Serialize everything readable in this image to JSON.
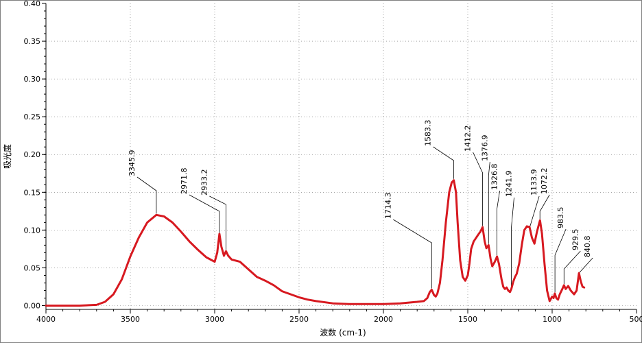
{
  "chart_data": {
    "type": "line",
    "title": "",
    "xlabel": "波数 (cm-1)",
    "ylabel": "吸光度",
    "xlim": [
      4000,
      500
    ],
    "ylim": [
      -0.005,
      0.4
    ],
    "x_reversed": true,
    "grid": "dotted",
    "x_ticks": [
      "4000",
      "3500",
      "3000",
      "2500",
      "2000",
      "1500",
      "1000",
      "500"
    ],
    "y_ticks": [
      "0.00",
      "0.05",
      "0.10",
      "0.15",
      "0.20",
      "0.25",
      "0.30",
      "0.35",
      "0.40"
    ],
    "series": [
      {
        "color": "#d71920",
        "x": [
          4000,
          3800,
          3700,
          3650,
          3600,
          3550,
          3500,
          3450,
          3400,
          3346,
          3300,
          3250,
          3200,
          3150,
          3100,
          3050,
          3000,
          2985,
          2972,
          2960,
          2945,
          2933,
          2920,
          2900,
          2850,
          2800,
          2750,
          2700,
          2650,
          2600,
          2550,
          2500,
          2450,
          2400,
          2300,
          2200,
          2100,
          2000,
          1900,
          1800,
          1760,
          1740,
          1725,
          1714,
          1700,
          1690,
          1680,
          1665,
          1650,
          1630,
          1610,
          1595,
          1583,
          1570,
          1560,
          1545,
          1530,
          1515,
          1500,
          1490,
          1480,
          1465,
          1450,
          1435,
          1425,
          1412,
          1400,
          1390,
          1377,
          1365,
          1355,
          1340,
          1327,
          1315,
          1300,
          1290,
          1280,
          1270,
          1260,
          1250,
          1242,
          1230,
          1220,
          1210,
          1195,
          1180,
          1165,
          1150,
          1134,
          1120,
          1105,
          1090,
          1072,
          1060,
          1045,
          1030,
          1015,
          1000,
          992,
          984,
          975,
          965,
          955,
          940,
          930,
          920,
          905,
          890,
          870,
          855,
          841,
          830,
          820,
          810
        ],
        "y": [
          0.0,
          0.0,
          0.001,
          0.005,
          0.015,
          0.035,
          0.065,
          0.09,
          0.11,
          0.12,
          0.118,
          0.11,
          0.098,
          0.085,
          0.074,
          0.064,
          0.058,
          0.07,
          0.095,
          0.078,
          0.066,
          0.072,
          0.066,
          0.061,
          0.058,
          0.048,
          0.038,
          0.033,
          0.027,
          0.019,
          0.015,
          0.011,
          0.008,
          0.006,
          0.003,
          0.002,
          0.002,
          0.002,
          0.003,
          0.005,
          0.006,
          0.01,
          0.018,
          0.021,
          0.014,
          0.012,
          0.016,
          0.03,
          0.06,
          0.11,
          0.15,
          0.163,
          0.166,
          0.15,
          0.11,
          0.06,
          0.038,
          0.033,
          0.04,
          0.056,
          0.075,
          0.085,
          0.09,
          0.095,
          0.098,
          0.104,
          0.085,
          0.076,
          0.08,
          0.062,
          0.052,
          0.058,
          0.065,
          0.055,
          0.035,
          0.025,
          0.022,
          0.024,
          0.02,
          0.018,
          0.022,
          0.032,
          0.038,
          0.042,
          0.056,
          0.08,
          0.1,
          0.105,
          0.104,
          0.09,
          0.082,
          0.098,
          0.113,
          0.095,
          0.055,
          0.02,
          0.006,
          0.012,
          0.01,
          0.016,
          0.01,
          0.008,
          0.015,
          0.022,
          0.027,
          0.022,
          0.026,
          0.02,
          0.015,
          0.02,
          0.043,
          0.032,
          0.025,
          0.024
        ]
      }
    ],
    "annotations": [
      "3345.9",
      "2971.8",
      "2933.2",
      "1714.3",
      "1583.3",
      "1412.2",
      "1376.9",
      "1326.8",
      "1241.9",
      "1133.9",
      "1072.2",
      "983.5",
      "929.5",
      "840.8"
    ]
  }
}
